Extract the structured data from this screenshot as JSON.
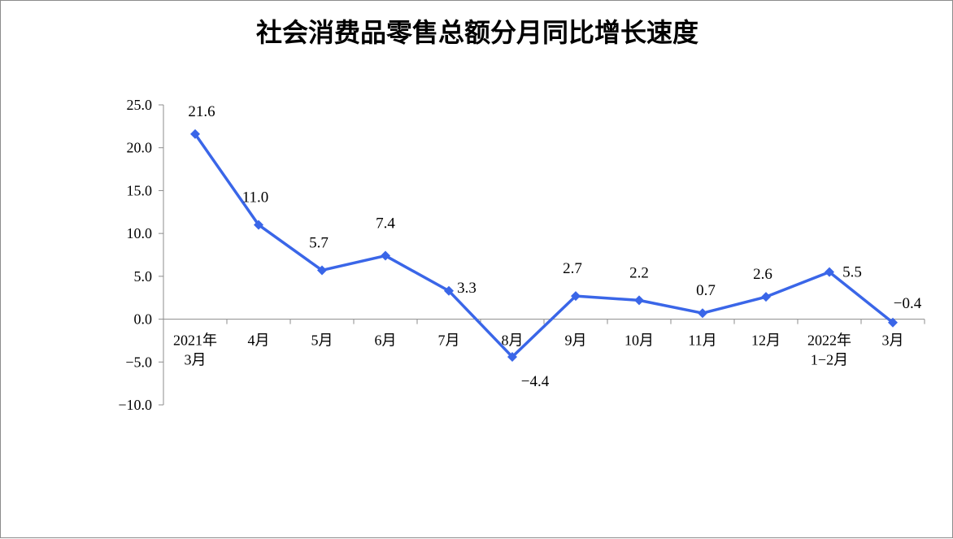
{
  "chart_data": {
    "type": "line",
    "title": "社会消费品零售总额分月同比增长速度",
    "xlabel": "",
    "ylabel": "",
    "ylim": [
      -10,
      25
    ],
    "y_ticks": [
      25,
      20,
      15,
      10,
      5,
      0,
      -5,
      -10
    ],
    "y_tick_labels": [
      "25.0",
      "20.0",
      "15.0",
      "10.0",
      "5.0",
      "0.0",
      "−5.0",
      "−10.0"
    ],
    "categories": [
      [
        "2021年",
        "3月"
      ],
      [
        "4月"
      ],
      [
        "5月"
      ],
      [
        "6月"
      ],
      [
        "7月"
      ],
      [
        "8月"
      ],
      [
        "9月"
      ],
      [
        "10月"
      ],
      [
        "11月"
      ],
      [
        "12月"
      ],
      [
        "2022年",
        "1−2月"
      ],
      [
        "3月"
      ]
    ],
    "series": [
      {
        "values": [
          21.6,
          11.0,
          5.7,
          7.4,
          3.3,
          -4.4,
          2.7,
          2.2,
          0.7,
          2.6,
          5.5,
          -0.4
        ],
        "labels": [
          "21.6",
          "11.0",
          "5.7",
          "7.4",
          "3.3",
          "−4.4",
          "2.7",
          "2.2",
          "0.7",
          "2.6",
          "5.5",
          "−0.4"
        ],
        "color": "#3a66e8",
        "marker": "diamond"
      }
    ],
    "grid": false,
    "legend": "none"
  }
}
